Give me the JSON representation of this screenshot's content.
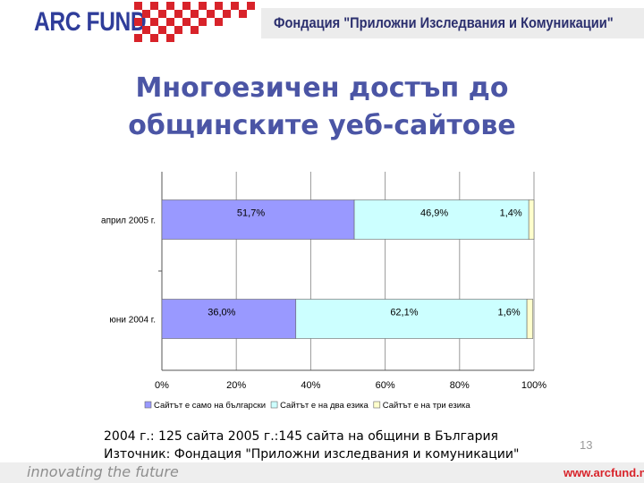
{
  "header": {
    "logo": "ARC FUND",
    "organization": "Фондация \"Приложни Изследвания и Комуникации\""
  },
  "title": {
    "line1": "Многоезичен достъп до",
    "line2": "общинските уеб-сайтове"
  },
  "chart_data": {
    "type": "bar",
    "orientation": "horizontal",
    "stacked": true,
    "percent_stacked": true,
    "categories": [
      "април 2005 г.",
      "юни 2004 г."
    ],
    "series": [
      {
        "name": "Сайтът е само на български",
        "values": [
          51.7,
          36.0
        ],
        "labels": [
          "51,7%",
          "36,0%"
        ],
        "color": "#9999ff"
      },
      {
        "name": "Сайтът е на два езика",
        "values": [
          46.9,
          62.1
        ],
        "labels": [
          "46,9%",
          "62,1%"
        ],
        "color": "#ccffff"
      },
      {
        "name": "Сайтът е на три езика",
        "values": [
          1.4,
          1.6
        ],
        "labels": [
          "1,4%",
          "1,6%"
        ],
        "color": "#ffffcc"
      }
    ],
    "xlim": [
      0,
      100
    ],
    "xticks": [
      "0%",
      "20%",
      "40%",
      "60%",
      "80%",
      "100%"
    ],
    "grid": true,
    "legend_position": "bottom"
  },
  "notes": {
    "line1": "2004 г.: 125 сайта 2005 г.:145 сайта на общини в България",
    "line2": "Източник: Фондация \"Приложни изследвания и комуникации\""
  },
  "page_number": "13",
  "footer": {
    "tagline": "innovating the future",
    "website": "www.arcfund.net"
  },
  "colors": {
    "brand_red": "#d8232a",
    "brand_blue": "#2f3d9a",
    "title_blue": "#4b55a5"
  }
}
